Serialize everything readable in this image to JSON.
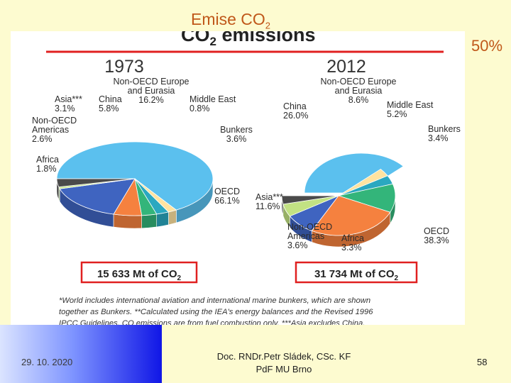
{
  "slide": {
    "title_main": "Emise CO",
    "title_sub": "2",
    "percent_note": "50%",
    "footer": {
      "date": "29. 10. 2020",
      "author_line1": "Doc. RNDr.Petr Sládek, CSc. KF",
      "author_line2": "PdF MU Brno",
      "page": "58"
    }
  },
  "figure": {
    "title_main": "CO",
    "title_sub": "2",
    "title_rest": " emissions",
    "footnote_line1": "*World includes international aviation and international marine bunkers, which are shown",
    "footnote_line2": "together as Bunkers. **Calculated using the IEA's energy balances and the Revised 1996",
    "footnote_line3": "IPCC Guidelines. CO  emissions are from fuel combustion only. ***Asia excludes China.",
    "colors": {
      "OECD": "#5bc0ee",
      "Africa": "#ffe3a0",
      "Non-OECD Americas": "#2aa8c0",
      "Asia***": "#33b57a",
      "China": "#f5813f",
      "Non-OECD Europe and Eurasia": "#3f64c0",
      "Middle East": "#c2e283",
      "Bunkers": "#4a4a4a",
      "total_box_border": "#e02020",
      "rule": "#e02020"
    }
  },
  "chart_data": [
    {
      "type": "pie",
      "title": "1973",
      "total_label": "15 633 Mt of CO",
      "total_sub": "2",
      "slices": [
        {
          "name": "OECD",
          "label_lines": [
            "OECD",
            "66.1%"
          ],
          "value": 66.1
        },
        {
          "name": "Africa",
          "label_lines": [
            "Africa",
            "1.8%"
          ],
          "value": 1.8
        },
        {
          "name": "Non-OECD Americas",
          "label_lines": [
            "Non-OECD",
            "Americas",
            "2.6%"
          ],
          "value": 2.6
        },
        {
          "name": "Asia***",
          "label_lines": [
            "Asia***",
            "3.1%"
          ],
          "value": 3.1
        },
        {
          "name": "China",
          "label_lines": [
            "China",
            "5.8%"
          ],
          "value": 5.8
        },
        {
          "name": "Non-OECD Europe and Eurasia",
          "label_lines": [
            "Non-OECD Europe",
            "and Eurasia",
            "16.2%"
          ],
          "value": 16.2
        },
        {
          "name": "Middle East",
          "label_lines": [
            "Middle East",
            "0.8%"
          ],
          "value": 0.8
        },
        {
          "name": "Bunkers",
          "label_lines": [
            "Bunkers",
            "3.6%"
          ],
          "value": 3.6
        }
      ]
    },
    {
      "type": "pie",
      "title": "2012",
      "total_label": "31 734 Mt of CO",
      "total_sub": "2",
      "slices": [
        {
          "name": "OECD",
          "label_lines": [
            "OECD",
            "38.3%"
          ],
          "value": 38.3
        },
        {
          "name": "Africa",
          "label_lines": [
            "Africa",
            "3.3%"
          ],
          "value": 3.3
        },
        {
          "name": "Non-OECD Americas",
          "label_lines": [
            "Non-OECD",
            "Americas",
            "3.6%"
          ],
          "value": 3.6
        },
        {
          "name": "Asia***",
          "label_lines": [
            "Asia***",
            "11.6%"
          ],
          "value": 11.6
        },
        {
          "name": "China",
          "label_lines": [
            "China",
            "26.0%"
          ],
          "value": 26.0
        },
        {
          "name": "Non-OECD Europe and Eurasia",
          "label_lines": [
            "Non-OECD Europe",
            "and Eurasia",
            "8.6%"
          ],
          "value": 8.6
        },
        {
          "name": "Middle East",
          "label_lines": [
            "Middle East",
            "5.2%"
          ],
          "value": 5.2
        },
        {
          "name": "Bunkers",
          "label_lines": [
            "Bunkers",
            "3.4%"
          ],
          "value": 3.4
        }
      ]
    }
  ]
}
